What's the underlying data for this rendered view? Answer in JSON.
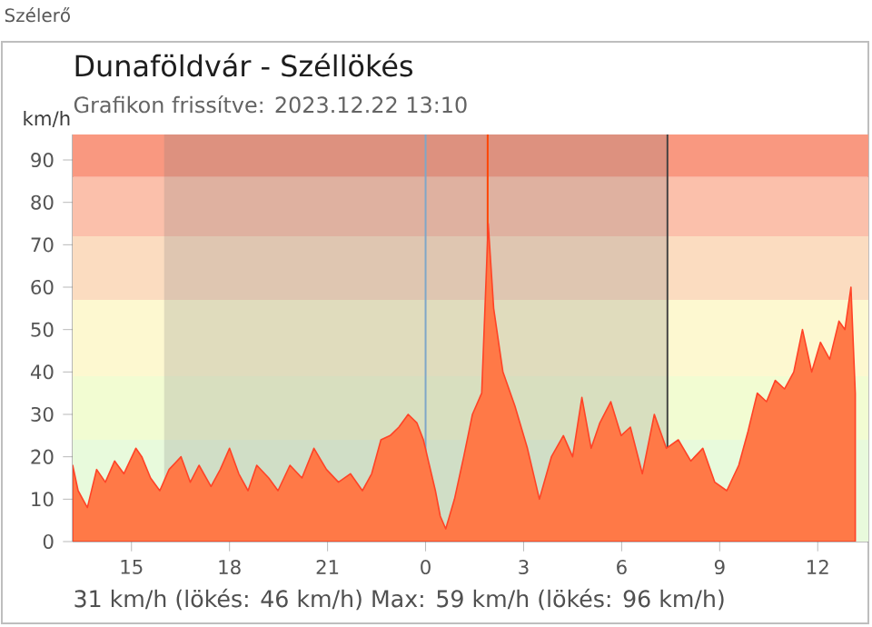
{
  "chart_data": {
    "type": "area",
    "title": "Dunaföldvár - Széllökés",
    "subtitle": "Grafikon frissítve: 2023.12.22 13:10",
    "ylabel": "km/h",
    "annotations": [
      "Szélerő",
      "31 km/h  (lökés: 46 km/h)  Max: 59 km/h (lökés: 96 km/h)"
    ],
    "xlim": [
      "2023-12-21T13:12",
      "2023-12-22T13:33"
    ],
    "ylim": [
      0,
      96
    ],
    "xticks": [
      {
        "value": "2023-12-21T15:00",
        "label": "15"
      },
      {
        "value": "2023-12-21T18:00",
        "label": "18"
      },
      {
        "value": "2023-12-21T21:00",
        "label": "21"
      },
      {
        "value": "2023-12-22T00:00",
        "label": "0"
      },
      {
        "value": "2023-12-22T03:00",
        "label": "3"
      },
      {
        "value": "2023-12-22T06:00",
        "label": "6"
      },
      {
        "value": "2023-12-22T09:00",
        "label": "9"
      },
      {
        "value": "2023-12-22T12:00",
        "label": "12"
      }
    ],
    "yticks": [
      0,
      10,
      20,
      30,
      40,
      50,
      60,
      70,
      80,
      90
    ],
    "bands": [
      {
        "axis": "y",
        "from": 0,
        "to": 24,
        "color": "#e8fadc"
      },
      {
        "axis": "y",
        "from": 24,
        "to": 39,
        "color": "#f2fcd2"
      },
      {
        "axis": "y",
        "from": 39,
        "to": 57,
        "color": "#fdf8d0"
      },
      {
        "axis": "y",
        "from": 57,
        "to": 72,
        "color": "#fbdcc0"
      },
      {
        "axis": "y",
        "from": 72,
        "to": 86,
        "color": "#fbc0ab"
      },
      {
        "axis": "y",
        "from": 86,
        "to": 96,
        "color": "#f99880"
      },
      {
        "axis": "x",
        "from": "2023-12-21T16:00",
        "to": "2023-12-22T07:24",
        "color": "#7a7a7a"
      }
    ],
    "ref_lines": [
      {
        "axis": "x",
        "value": "2023-12-22T00:00",
        "color": "#7fa7c7"
      },
      {
        "axis": "x",
        "value": "2023-12-22T01:54",
        "color": "#ff4500"
      },
      {
        "axis": "x",
        "value": "2023-12-22T07:24",
        "color": "#404040"
      }
    ],
    "series": [
      {
        "color": "#ff7947",
        "x": [
          "2023-12-21T13:12",
          "2023-12-21T13:22",
          "2023-12-21T13:39",
          "2023-12-21T13:56",
          "2023-12-21T14:12",
          "2023-12-21T14:29",
          "2023-12-21T14:46",
          "2023-12-21T15:08",
          "2023-12-21T15:19",
          "2023-12-21T15:35",
          "2023-12-21T15:52",
          "2023-12-21T16:09",
          "2023-12-21T16:31",
          "2023-12-21T16:48",
          "2023-12-21T17:04",
          "2023-12-21T17:26",
          "2023-12-21T17:43",
          "2023-12-21T18:00",
          "2023-12-21T18:17",
          "2023-12-21T18:34",
          "2023-12-21T18:50",
          "2023-12-21T19:12",
          "2023-12-21T19:29",
          "2023-12-21T19:51",
          "2023-12-21T20:13",
          "2023-12-21T20:35",
          "2023-12-21T20:58",
          "2023-12-21T21:20",
          "2023-12-21T21:42",
          "2023-12-21T22:04",
          "2023-12-21T22:21",
          "2023-12-21T22:38",
          "2023-12-21T22:55",
          "2023-12-21T23:11",
          "2023-12-21T23:28",
          "2023-12-21T23:44",
          "2023-12-21T23:56",
          "2023-12-22T00:07",
          "2023-12-22T00:18",
          "2023-12-22T00:27",
          "2023-12-22T00:37",
          "2023-12-22T00:53",
          "2023-12-22T01:10",
          "2023-12-22T01:26",
          "2023-12-22T01:43",
          "2023-12-22T01:55",
          "2023-12-22T02:05",
          "2023-12-22T02:22",
          "2023-12-22T02:44",
          "2023-12-22T03:07",
          "2023-12-22T03:29",
          "2023-12-22T03:51",
          "2023-12-22T04:13",
          "2023-12-22T04:30",
          "2023-12-22T04:47",
          "2023-12-22T05:04",
          "2023-12-22T05:20",
          "2023-12-22T05:40",
          "2023-12-22T05:59",
          "2023-12-22T06:16",
          "2023-12-22T06:38",
          "2023-12-22T07:00",
          "2023-12-22T07:22",
          "2023-12-22T07:44",
          "2023-12-22T08:07",
          "2023-12-22T08:29",
          "2023-12-22T08:51",
          "2023-12-22T09:13",
          "2023-12-22T09:35",
          "2023-12-22T09:52",
          "2023-12-22T10:09",
          "2023-12-22T10:26",
          "2023-12-22T10:42",
          "2023-12-22T10:59",
          "2023-12-22T11:16",
          "2023-12-22T11:32",
          "2023-12-22T11:49",
          "2023-12-22T12:05",
          "2023-12-22T12:22",
          "2023-12-22T12:39",
          "2023-12-22T12:50",
          "2023-12-22T13:01",
          "2023-12-22T13:09"
        ],
        "values": [
          18,
          12,
          8,
          17,
          14,
          19,
          16,
          22,
          20,
          15,
          12,
          17,
          20,
          14,
          18,
          13,
          17,
          22,
          16,
          12,
          18,
          15,
          12,
          18,
          15,
          22,
          17,
          14,
          16,
          12,
          16,
          24,
          25,
          27,
          30,
          28,
          24,
          18,
          12,
          6,
          3,
          10,
          20,
          30,
          35,
          75,
          55,
          40,
          32,
          22,
          10,
          20,
          25,
          20,
          34,
          22,
          28,
          33,
          25,
          27,
          16,
          30,
          22,
          24,
          19,
          22,
          14,
          12,
          18,
          26,
          35,
          33,
          38,
          36,
          40,
          50,
          40,
          47,
          43,
          52,
          50,
          60,
          35
        ]
      }
    ]
  }
}
